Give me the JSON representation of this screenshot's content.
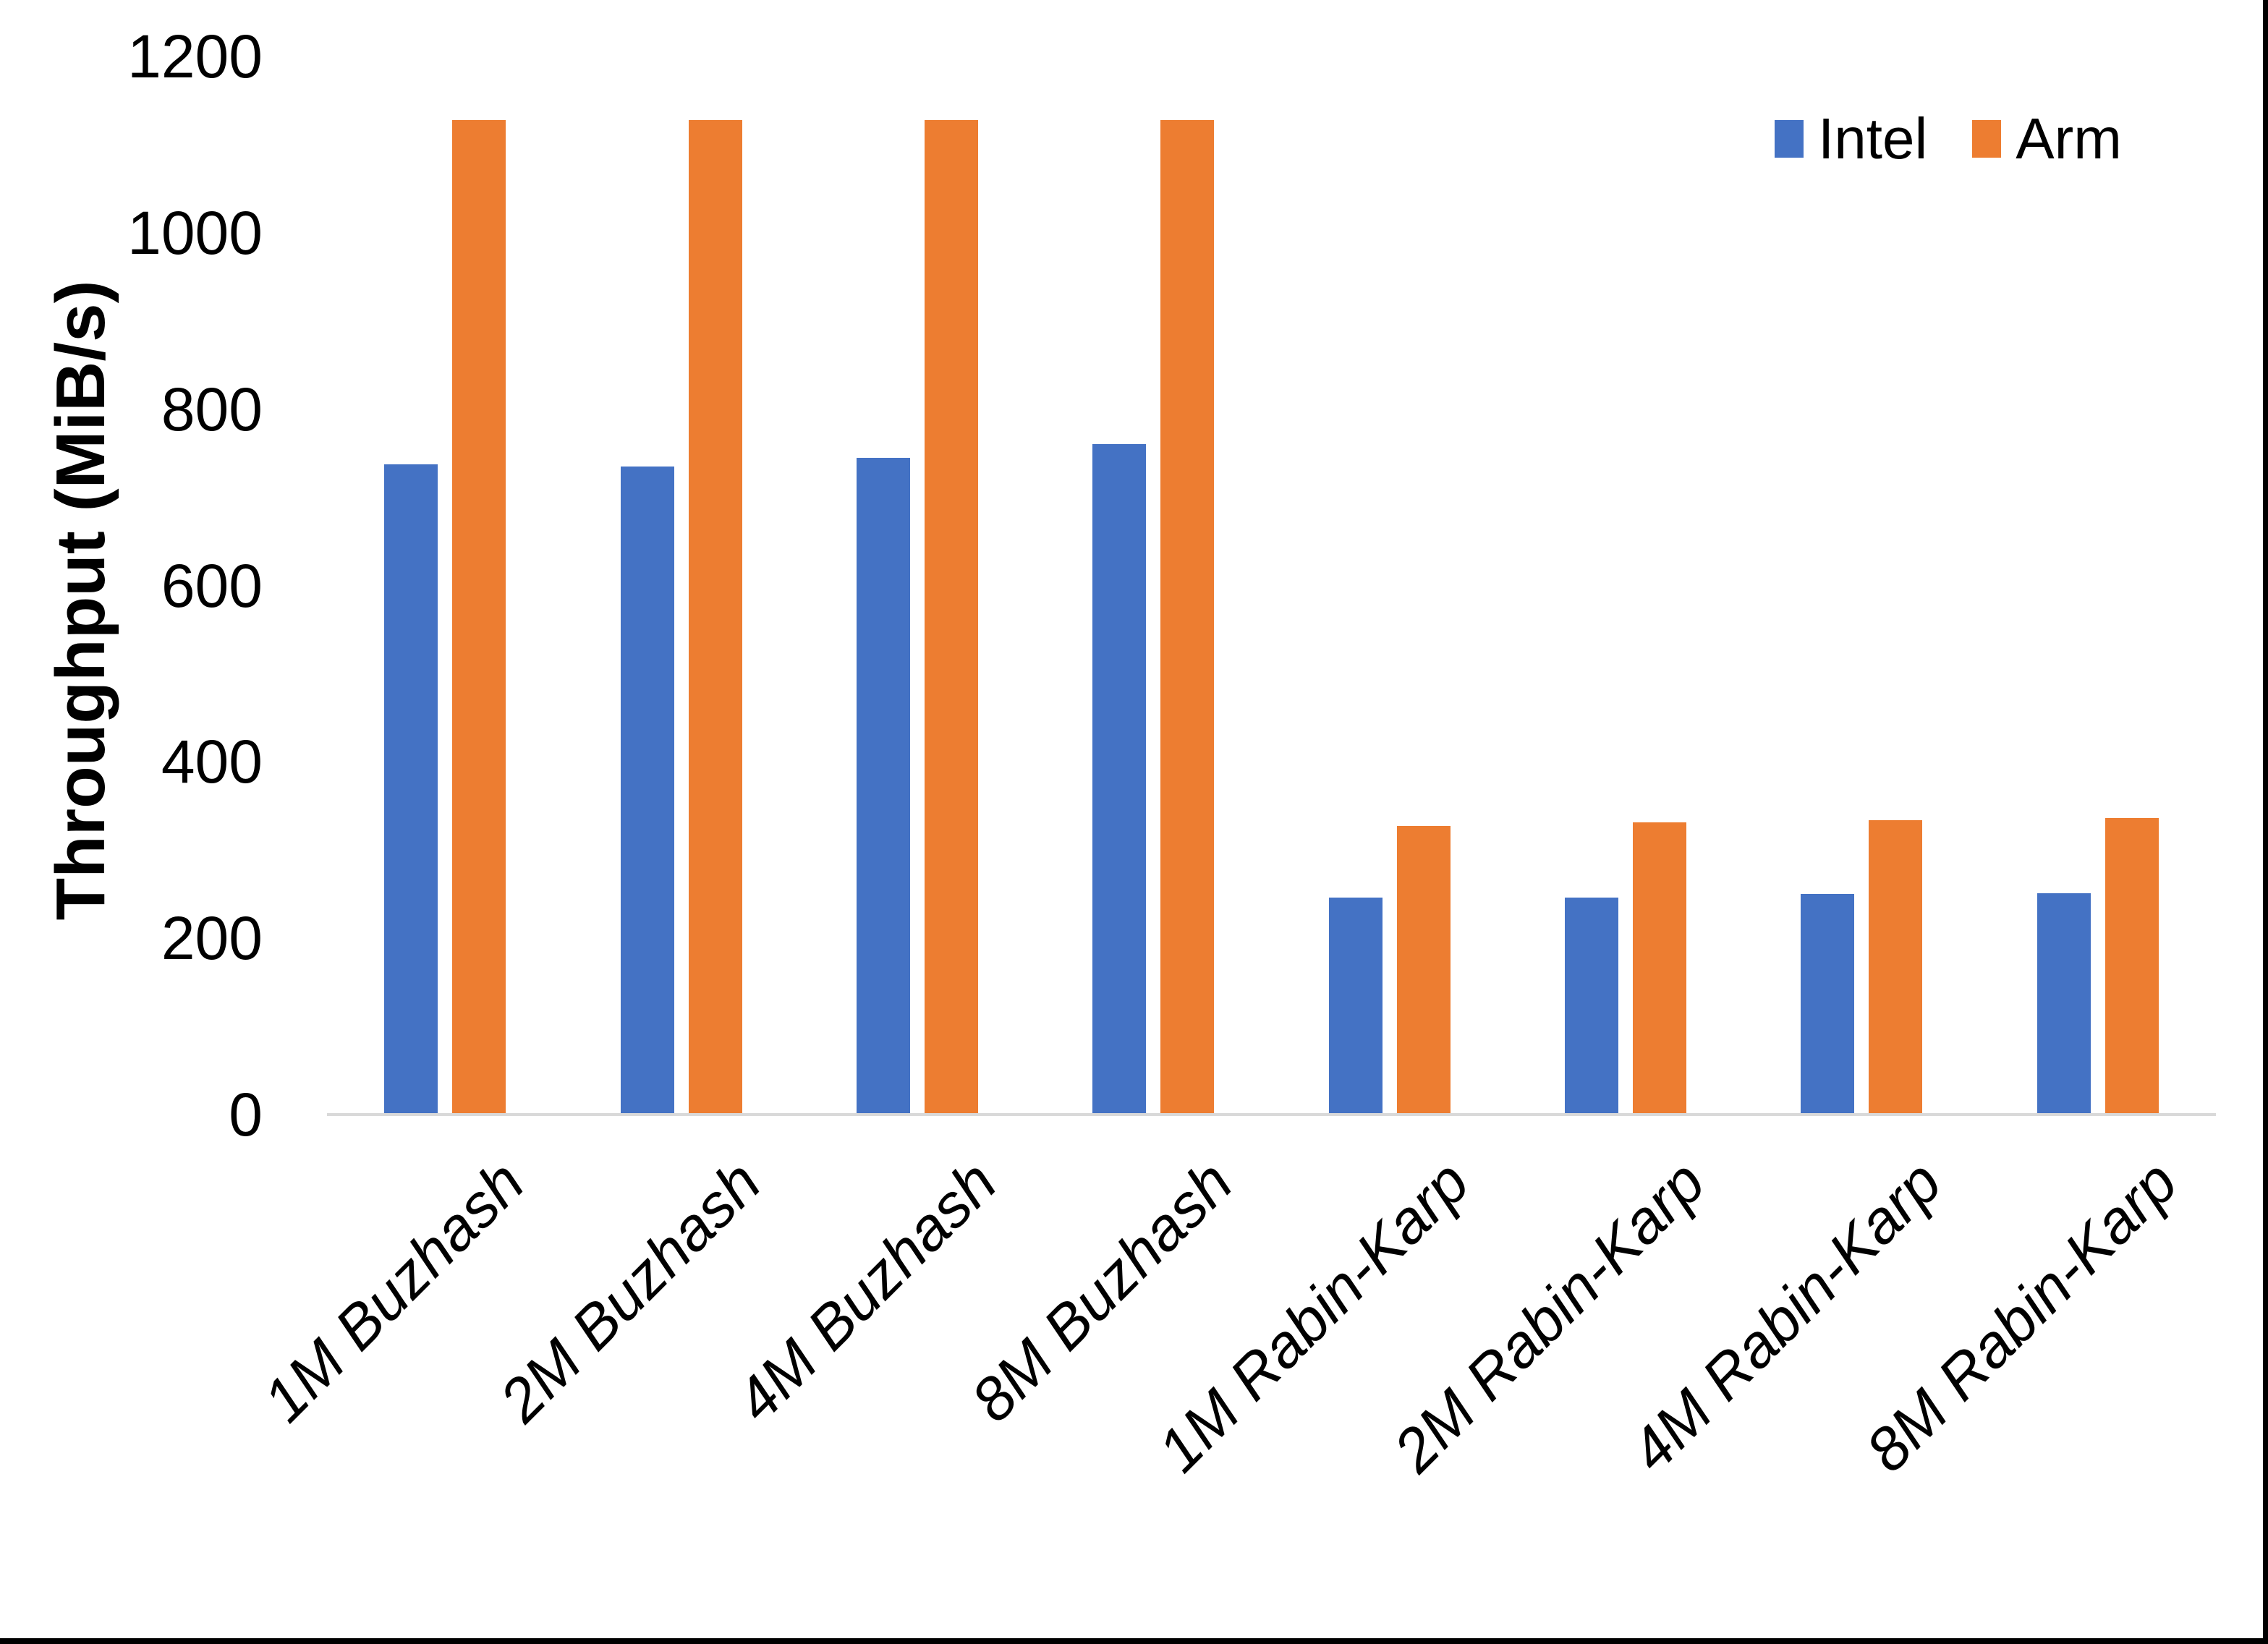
{
  "chart_data": {
    "type": "bar",
    "title": "",
    "ylabel": "Throughput (MiB/s)",
    "ylim": [
      0,
      1200
    ],
    "ytick_step": 200,
    "yticks": [
      1200,
      1000,
      800,
      600,
      400,
      200,
      0
    ],
    "categories": [
      "1M Buzhash",
      "2M Buzhash",
      "4M Buzhash",
      "8M Buzhash",
      "1M Rabin-Karp",
      "2M Rabin-Karp",
      "4M Rabin-Karp",
      "8M Rabin-Karp"
    ],
    "series": [
      {
        "name": "Intel",
        "color": "#4472C4",
        "values": [
          737,
          735,
          745,
          760,
          246,
          246,
          250,
          251
        ]
      },
      {
        "name": "Arm",
        "color": "#ED7D31",
        "values": [
          1128,
          1128,
          1128,
          1128,
          327,
          331,
          334,
          336
        ]
      }
    ],
    "legend_position": "top-right",
    "grid": false,
    "axis_line_color": "#D9D9D9",
    "background_color": "#FFFFFF",
    "frame_color": "#000000",
    "text_color": "#000000"
  }
}
